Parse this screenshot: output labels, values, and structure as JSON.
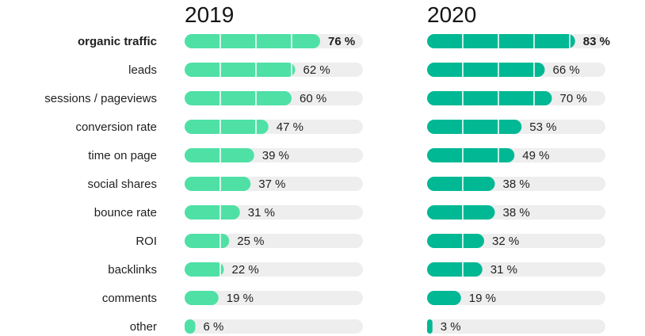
{
  "chart_data": {
    "type": "bar",
    "orientation": "horizontal",
    "categories": [
      "organic traffic",
      "leads",
      "sessions / pageviews",
      "conversion rate",
      "time on page",
      "social shares",
      "bounce rate",
      "ROI",
      "backlinks",
      "comments",
      "other"
    ],
    "highlighted_category": "organic traffic",
    "value_suffix": " %",
    "xlim": [
      0,
      100
    ],
    "grid": false,
    "series": [
      {
        "name": "2019",
        "color": "#4fe0a6",
        "values": [
          76,
          62,
          60,
          47,
          39,
          37,
          31,
          25,
          22,
          19,
          6
        ]
      },
      {
        "name": "2020",
        "color": "#00b893",
        "values": [
          83,
          66,
          70,
          53,
          49,
          38,
          38,
          32,
          31,
          19,
          3
        ]
      }
    ],
    "track_color": "#eeeeee",
    "divider_color": "#ffffff"
  }
}
